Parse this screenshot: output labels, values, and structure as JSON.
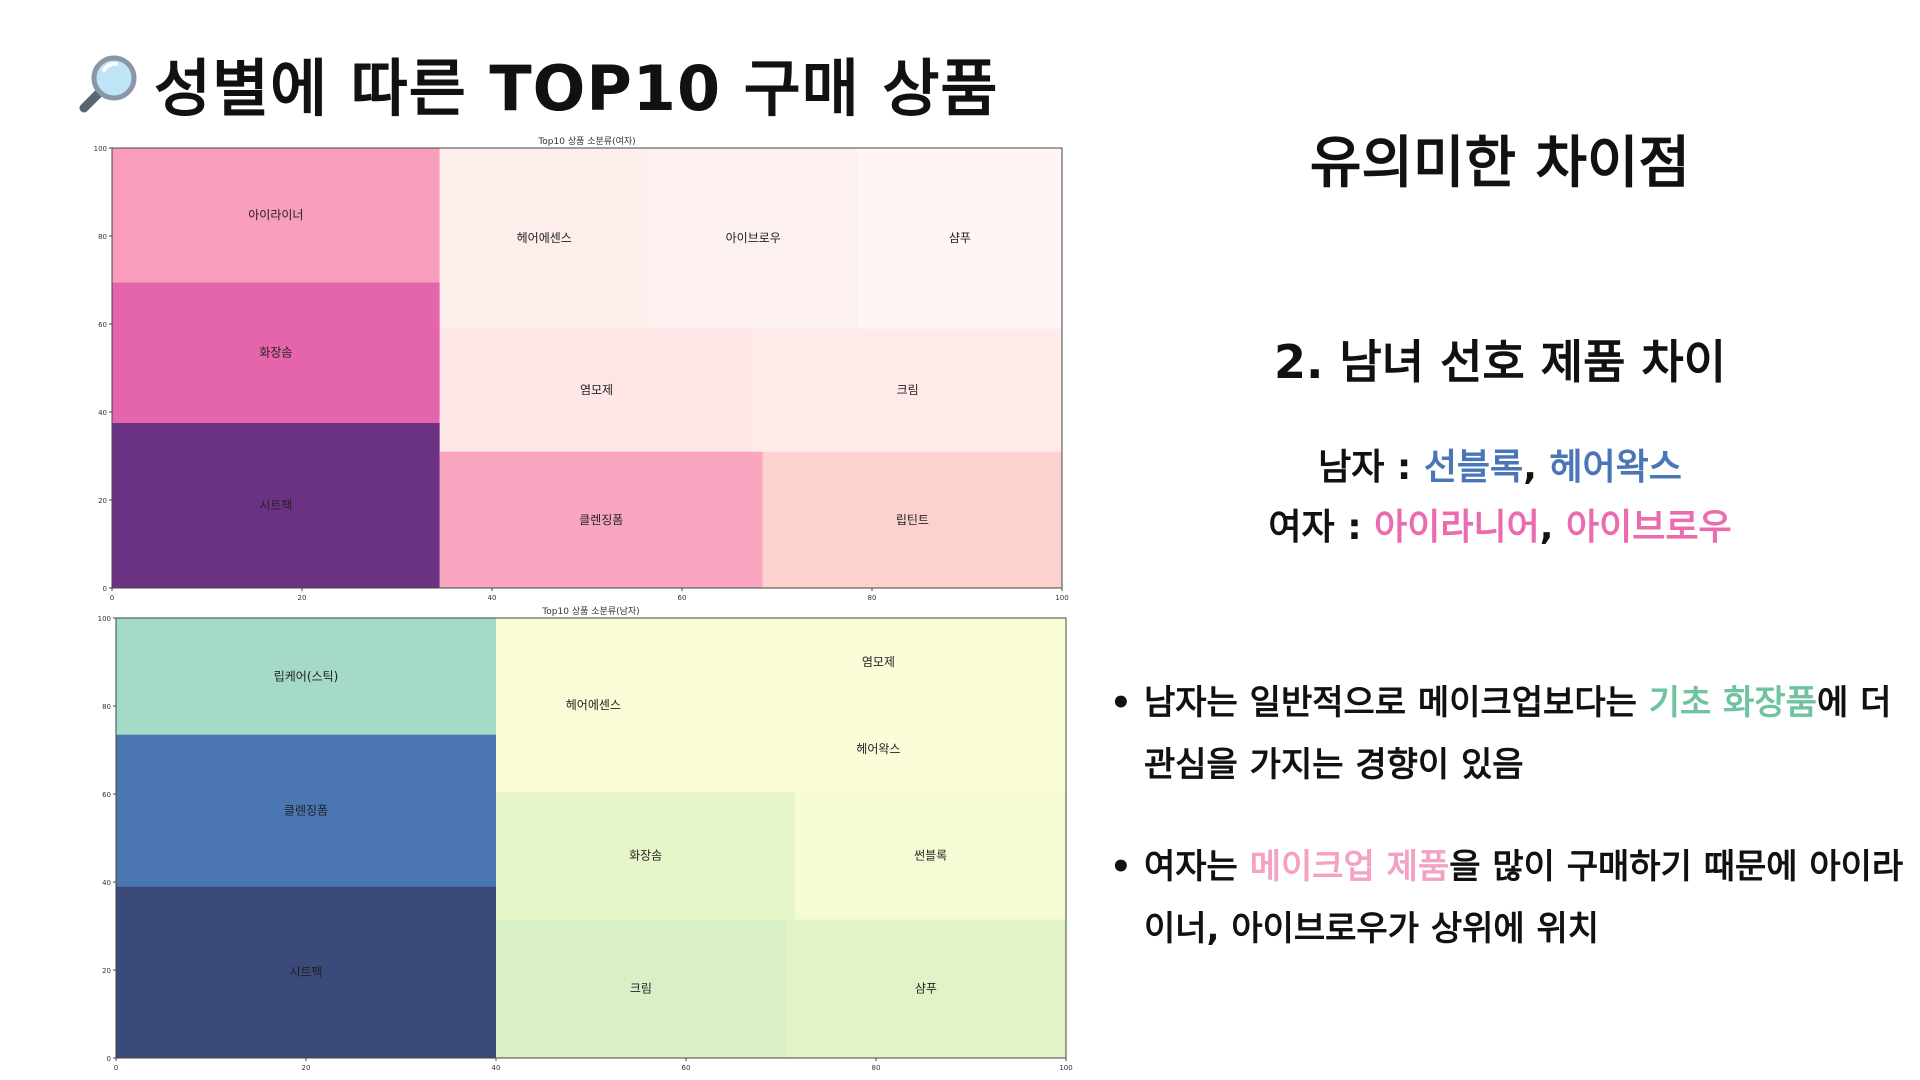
{
  "page_title": "성별에 따른 TOP10 구매 상품",
  "title_icon": "magnifier-icon",
  "right": {
    "heading": "유의미한 차이점",
    "subheading": "2. 남녀 선호 제품 차이",
    "male": {
      "label": "남자",
      "sep": " : ",
      "item1": "선블록",
      "comma": ", ",
      "item2": "헤어왁스"
    },
    "female": {
      "label": "여자",
      "sep": " : ",
      "item1": "아이라니어",
      "comma": ", ",
      "item2": "아이브로우"
    },
    "bullet1": {
      "before": "남자는 일반적으로 메이크업보다는 ",
      "highlight": "기초 화장품",
      "after": "에 더 관심을 가지는 경향이 있음"
    },
    "bullet2": {
      "before": "여자는 ",
      "highlight": "메이크업 제품",
      "after": "을 많이 구매하기 때문에 아이라이너, 아이브로우가 상위에 위치"
    }
  },
  "colors": {
    "male_highlight": "#4a76b8",
    "female_highlight": "#ea6bb0",
    "basic_highlight": "#6fc39f",
    "makeup_highlight": "#f3a2c3"
  },
  "chart_data": [
    {
      "type": "treemap",
      "title": "Top10 상품 소분류(여자)",
      "xlim": [
        0,
        100
      ],
      "ylim": [
        0,
        100
      ],
      "xticks": [
        0,
        20,
        40,
        60,
        80,
        100
      ],
      "yticks": [
        0,
        20,
        40,
        60,
        80,
        100
      ],
      "cells": [
        {
          "label": "시트팩",
          "x0": 0,
          "y0": 0,
          "x1": 34.5,
          "y1": 37.5,
          "color": "#6b3182"
        },
        {
          "label": "화장솜",
          "x0": 0,
          "y0": 37.5,
          "x1": 34.5,
          "y1": 69.5,
          "color": "#e565ac"
        },
        {
          "label": "아이라이너",
          "x0": 0,
          "y0": 69.5,
          "x1": 34.5,
          "y1": 100,
          "color": "#f89ebb"
        },
        {
          "label": "클렌징폼",
          "x0": 34.5,
          "y0": 0,
          "x1": 68.5,
          "y1": 31,
          "color": "#fba6c0"
        },
        {
          "label": "립틴트",
          "x0": 68.5,
          "y0": 0,
          "x1": 100,
          "y1": 31,
          "color": "#fdd1cd"
        },
        {
          "label": "염모제",
          "x0": 34.5,
          "y0": 31,
          "x1": 67.5,
          "y1": 59,
          "color": "#fde6e5"
        },
        {
          "label": "크림",
          "x0": 67.5,
          "y0": 31,
          "x1": 100,
          "y1": 59,
          "color": "#feebe9"
        },
        {
          "label": "헤어에센스",
          "x0": 34.5,
          "y0": 59,
          "x1": 56.5,
          "y1": 100,
          "color": "#fdeeec"
        },
        {
          "label": "아이브로우",
          "x0": 56.5,
          "y0": 59,
          "x1": 78.5,
          "y1": 100,
          "color": "#fdf1f0"
        },
        {
          "label": "샴푸",
          "x0": 78.5,
          "y0": 59,
          "x1": 100,
          "y1": 100,
          "color": "#fef5f4"
        }
      ]
    },
    {
      "type": "treemap",
      "title": "Top10 상품 소분류(남자)",
      "xlim": [
        0,
        100
      ],
      "ylim": [
        0,
        100
      ],
      "xticks": [
        0,
        20,
        40,
        60,
        80,
        100
      ],
      "yticks": [
        0,
        20,
        40,
        60,
        80,
        100
      ],
      "cells": [
        {
          "label": "시트팩",
          "x0": 0,
          "y0": 0,
          "x1": 40,
          "y1": 39,
          "color": "#3a4a7a"
        },
        {
          "label": "클렌징폼",
          "x0": 0,
          "y0": 39,
          "x1": 40,
          "y1": 73.5,
          "color": "#4a76b4"
        },
        {
          "label": "립케어(스틱)",
          "x0": 0,
          "y0": 73.5,
          "x1": 40,
          "y1": 100,
          "color": "#a4dac6"
        },
        {
          "label": "크림",
          "x0": 40,
          "y0": 0,
          "x1": 70.5,
          "y1": 31.5,
          "color": "#d9efc5"
        },
        {
          "label": "샴푸",
          "x0": 70.5,
          "y0": 0,
          "x1": 100,
          "y1": 31.5,
          "color": "#e3f3c8"
        },
        {
          "label": "화장솜",
          "x0": 40,
          "y0": 31.5,
          "x1": 71.5,
          "y1": 60.5,
          "color": "#e6f6c9"
        },
        {
          "label": "썬블록",
          "x0": 71.5,
          "y0": 31.5,
          "x1": 100,
          "y1": 60.5,
          "color": "#f6fbd5"
        },
        {
          "label": "헤어에센스",
          "x0": 40,
          "y0": 60.5,
          "x1": 60.5,
          "y1": 100,
          "color": "#f9fcd6"
        },
        {
          "label": "헤어왁스",
          "x0": 60.5,
          "y0": 60.5,
          "x1": 100,
          "y1": 80,
          "color": "#fbfdd9"
        },
        {
          "label": "염모제",
          "x0": 60.5,
          "y0": 80,
          "x1": 100,
          "y1": 100,
          "color": "#fbfdd9"
        }
      ]
    }
  ]
}
